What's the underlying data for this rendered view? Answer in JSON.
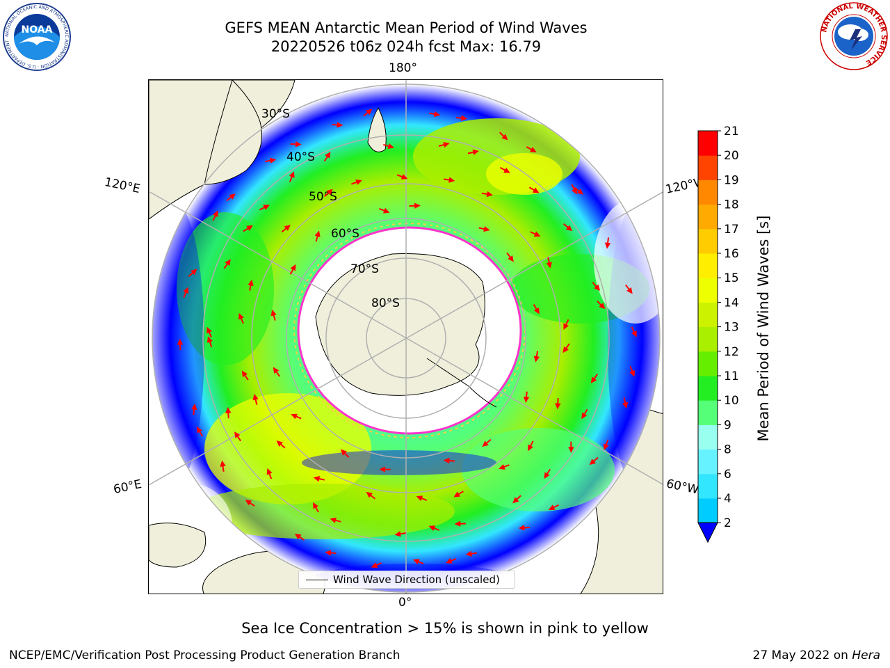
{
  "title": {
    "line1": "GEFS MEAN Antarctic Mean Period of Wind Waves",
    "line2": "20220526 t06z 024h fcst   Max: 16.79"
  },
  "logos": {
    "left": {
      "text": "NOAA",
      "ring_text": "NATIONAL OCEANIC AND ATMOSPHERIC ADMINISTRATION · U.S. DEPARTMENT OF COMMERCE"
    },
    "right": {
      "ring_text": "NATIONAL WEATHER SERVICE"
    }
  },
  "map": {
    "projection": "south-polar-stereographic",
    "longitude_labels": {
      "top": "180°",
      "bottom": "0°",
      "upper_left": "120°E",
      "upper_right": "120°W",
      "lower_left": "60°E",
      "lower_right": "60°W"
    },
    "latitude_labels": [
      "30°S",
      "40°S",
      "50°S",
      "60°S",
      "70°S",
      "80°S"
    ],
    "legend": "Wind Wave Direction (unscaled)",
    "colors": {
      "land": "#efefdb",
      "sea_ice": "#ffffff",
      "ice_edge": "#ff33cc",
      "vectors": "#ff0000",
      "grid": "#b0b0b0"
    }
  },
  "colorbar": {
    "label": "Mean Period of Wind Waves [s]",
    "ticks": [
      "2",
      "4",
      "6",
      "8",
      "9",
      "10",
      "11",
      "12",
      "13",
      "14",
      "15",
      "16",
      "17",
      "18",
      "19",
      "20",
      "21"
    ],
    "colors": [
      "#0077ff",
      "#00ccff",
      "#33e6ff",
      "#66f2ff",
      "#99ffee",
      "#55ff77",
      "#22ee22",
      "#66ee00",
      "#aaee00",
      "#ccf200",
      "#eeff00",
      "#ffee00",
      "#ffcc00",
      "#ffaa00",
      "#ff8800",
      "#ff4400",
      "#ff0000"
    ],
    "under_color": "#0000ff"
  },
  "footer": {
    "ice_note": "Sea Ice Concentration > 15% is shown in pink to yellow",
    "left": "NCEP/EMC/Verification Post Processing Product Generation Branch",
    "right_prefix": "27 May 2022 on ",
    "right_machine": "Hera"
  }
}
